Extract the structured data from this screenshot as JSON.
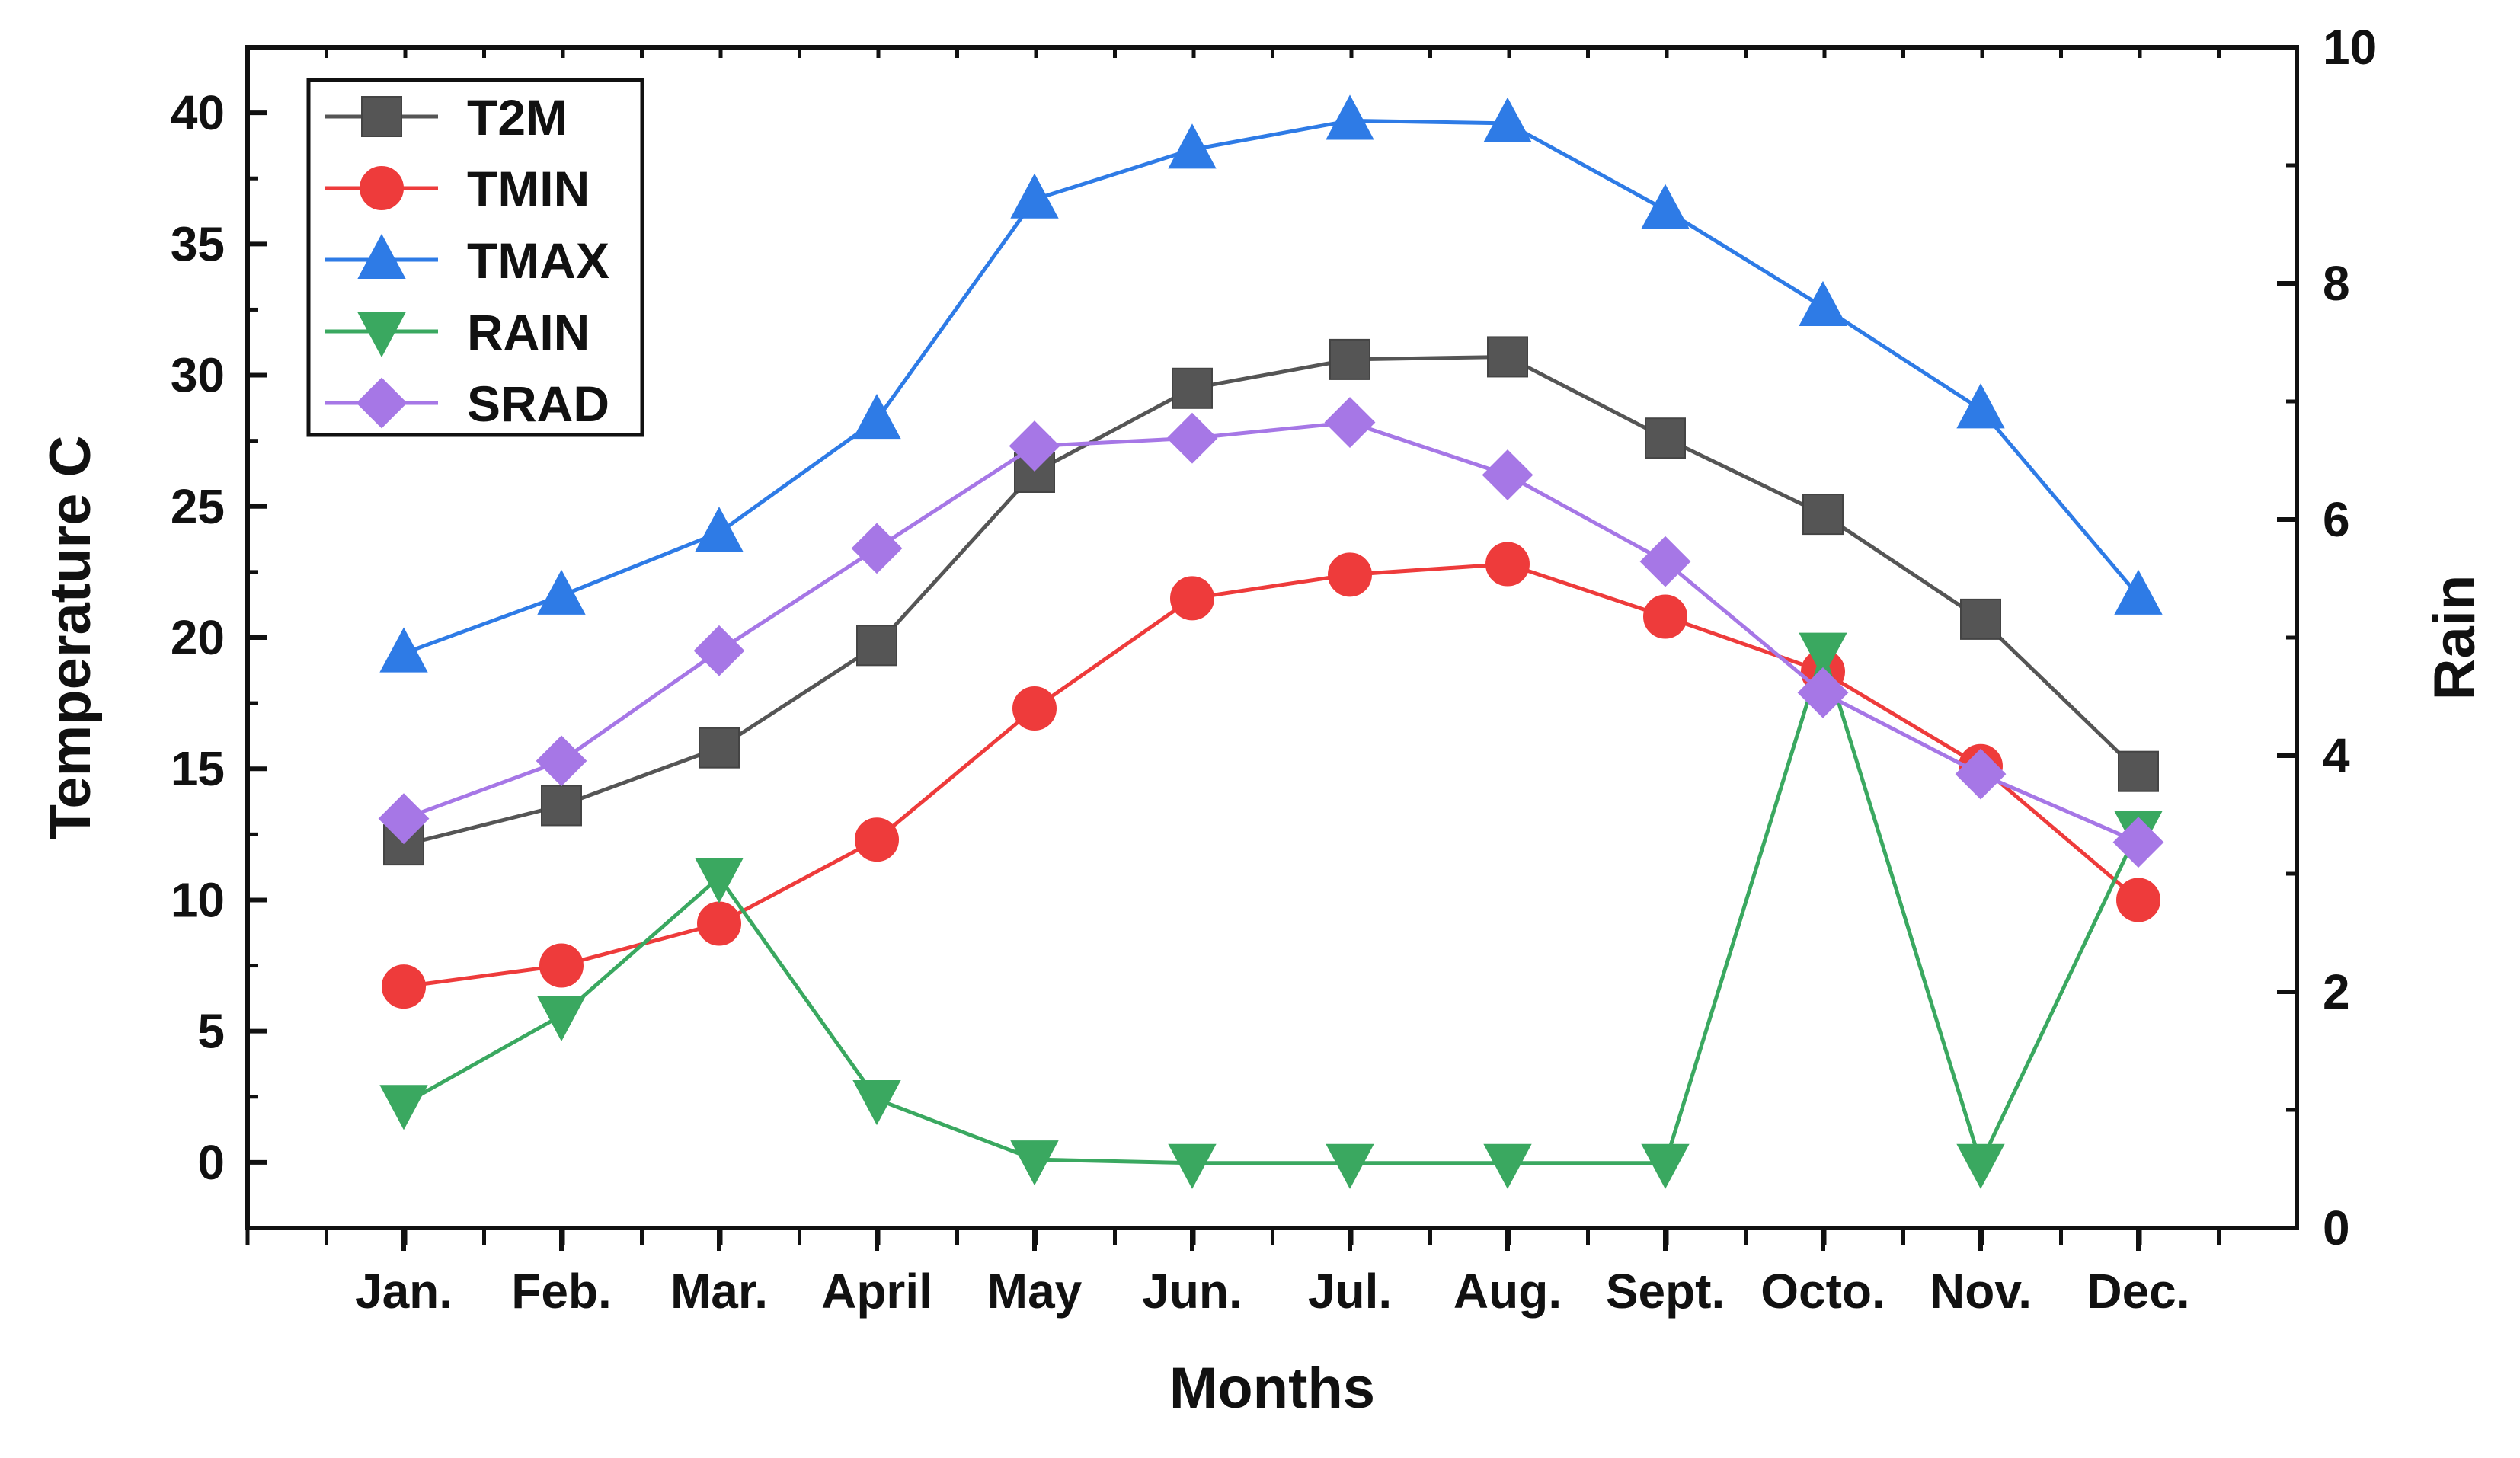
{
  "chart_data": {
    "type": "line",
    "title": "",
    "xlabel": "Months",
    "ylabel": "Temperature C",
    "y2label": "Rain",
    "categories": [
      "Jan.",
      "Feb.",
      "Mar.",
      "April",
      "May",
      "Jun.",
      "Jul.",
      "Aug.",
      "Sept.",
      "Octo.",
      "Nov.",
      "Dec."
    ],
    "ylim": [
      -2.5,
      42.5
    ],
    "y_ticks": [
      0,
      5,
      10,
      15,
      20,
      25,
      30,
      35,
      40
    ],
    "y2lim": [
      0,
      10
    ],
    "y2_ticks": [
      0,
      2,
      4,
      6,
      8,
      10
    ],
    "legend_position": "top-left",
    "series": [
      {
        "name": "T2M",
        "axis": "left",
        "marker": "square",
        "color": "#555555",
        "values": [
          12.1,
          13.6,
          15.8,
          19.7,
          26.3,
          29.5,
          30.6,
          30.7,
          27.6,
          24.7,
          20.7,
          14.9
        ]
      },
      {
        "name": "TMIN",
        "axis": "left",
        "marker": "circle",
        "color": "#ee3b3b",
        "values": [
          6.7,
          7.5,
          9.1,
          12.3,
          17.3,
          21.5,
          22.4,
          22.8,
          20.8,
          18.7,
          15.1,
          10.0
        ]
      },
      {
        "name": "TMAX",
        "axis": "left",
        "marker": "triangle-up",
        "color": "#2e7be6",
        "values": [
          19.4,
          21.6,
          24.0,
          28.3,
          36.7,
          38.6,
          39.7,
          39.6,
          36.3,
          32.6,
          28.7,
          21.6
        ]
      },
      {
        "name": "RAIN",
        "axis": "right",
        "marker": "triangle-down",
        "color": "#3aa860",
        "values": [
          1.05,
          1.8,
          2.97,
          1.09,
          0.58,
          0.55,
          0.55,
          0.55,
          0.55,
          4.88,
          0.55,
          3.37
        ]
      },
      {
        "name": "SRAD",
        "axis": "left",
        "marker": "diamond",
        "color": "#a677e6",
        "values": [
          13.1,
          15.3,
          19.5,
          23.4,
          27.3,
          27.6,
          28.2,
          26.2,
          22.9,
          17.9,
          14.8,
          12.2
        ]
      }
    ]
  }
}
